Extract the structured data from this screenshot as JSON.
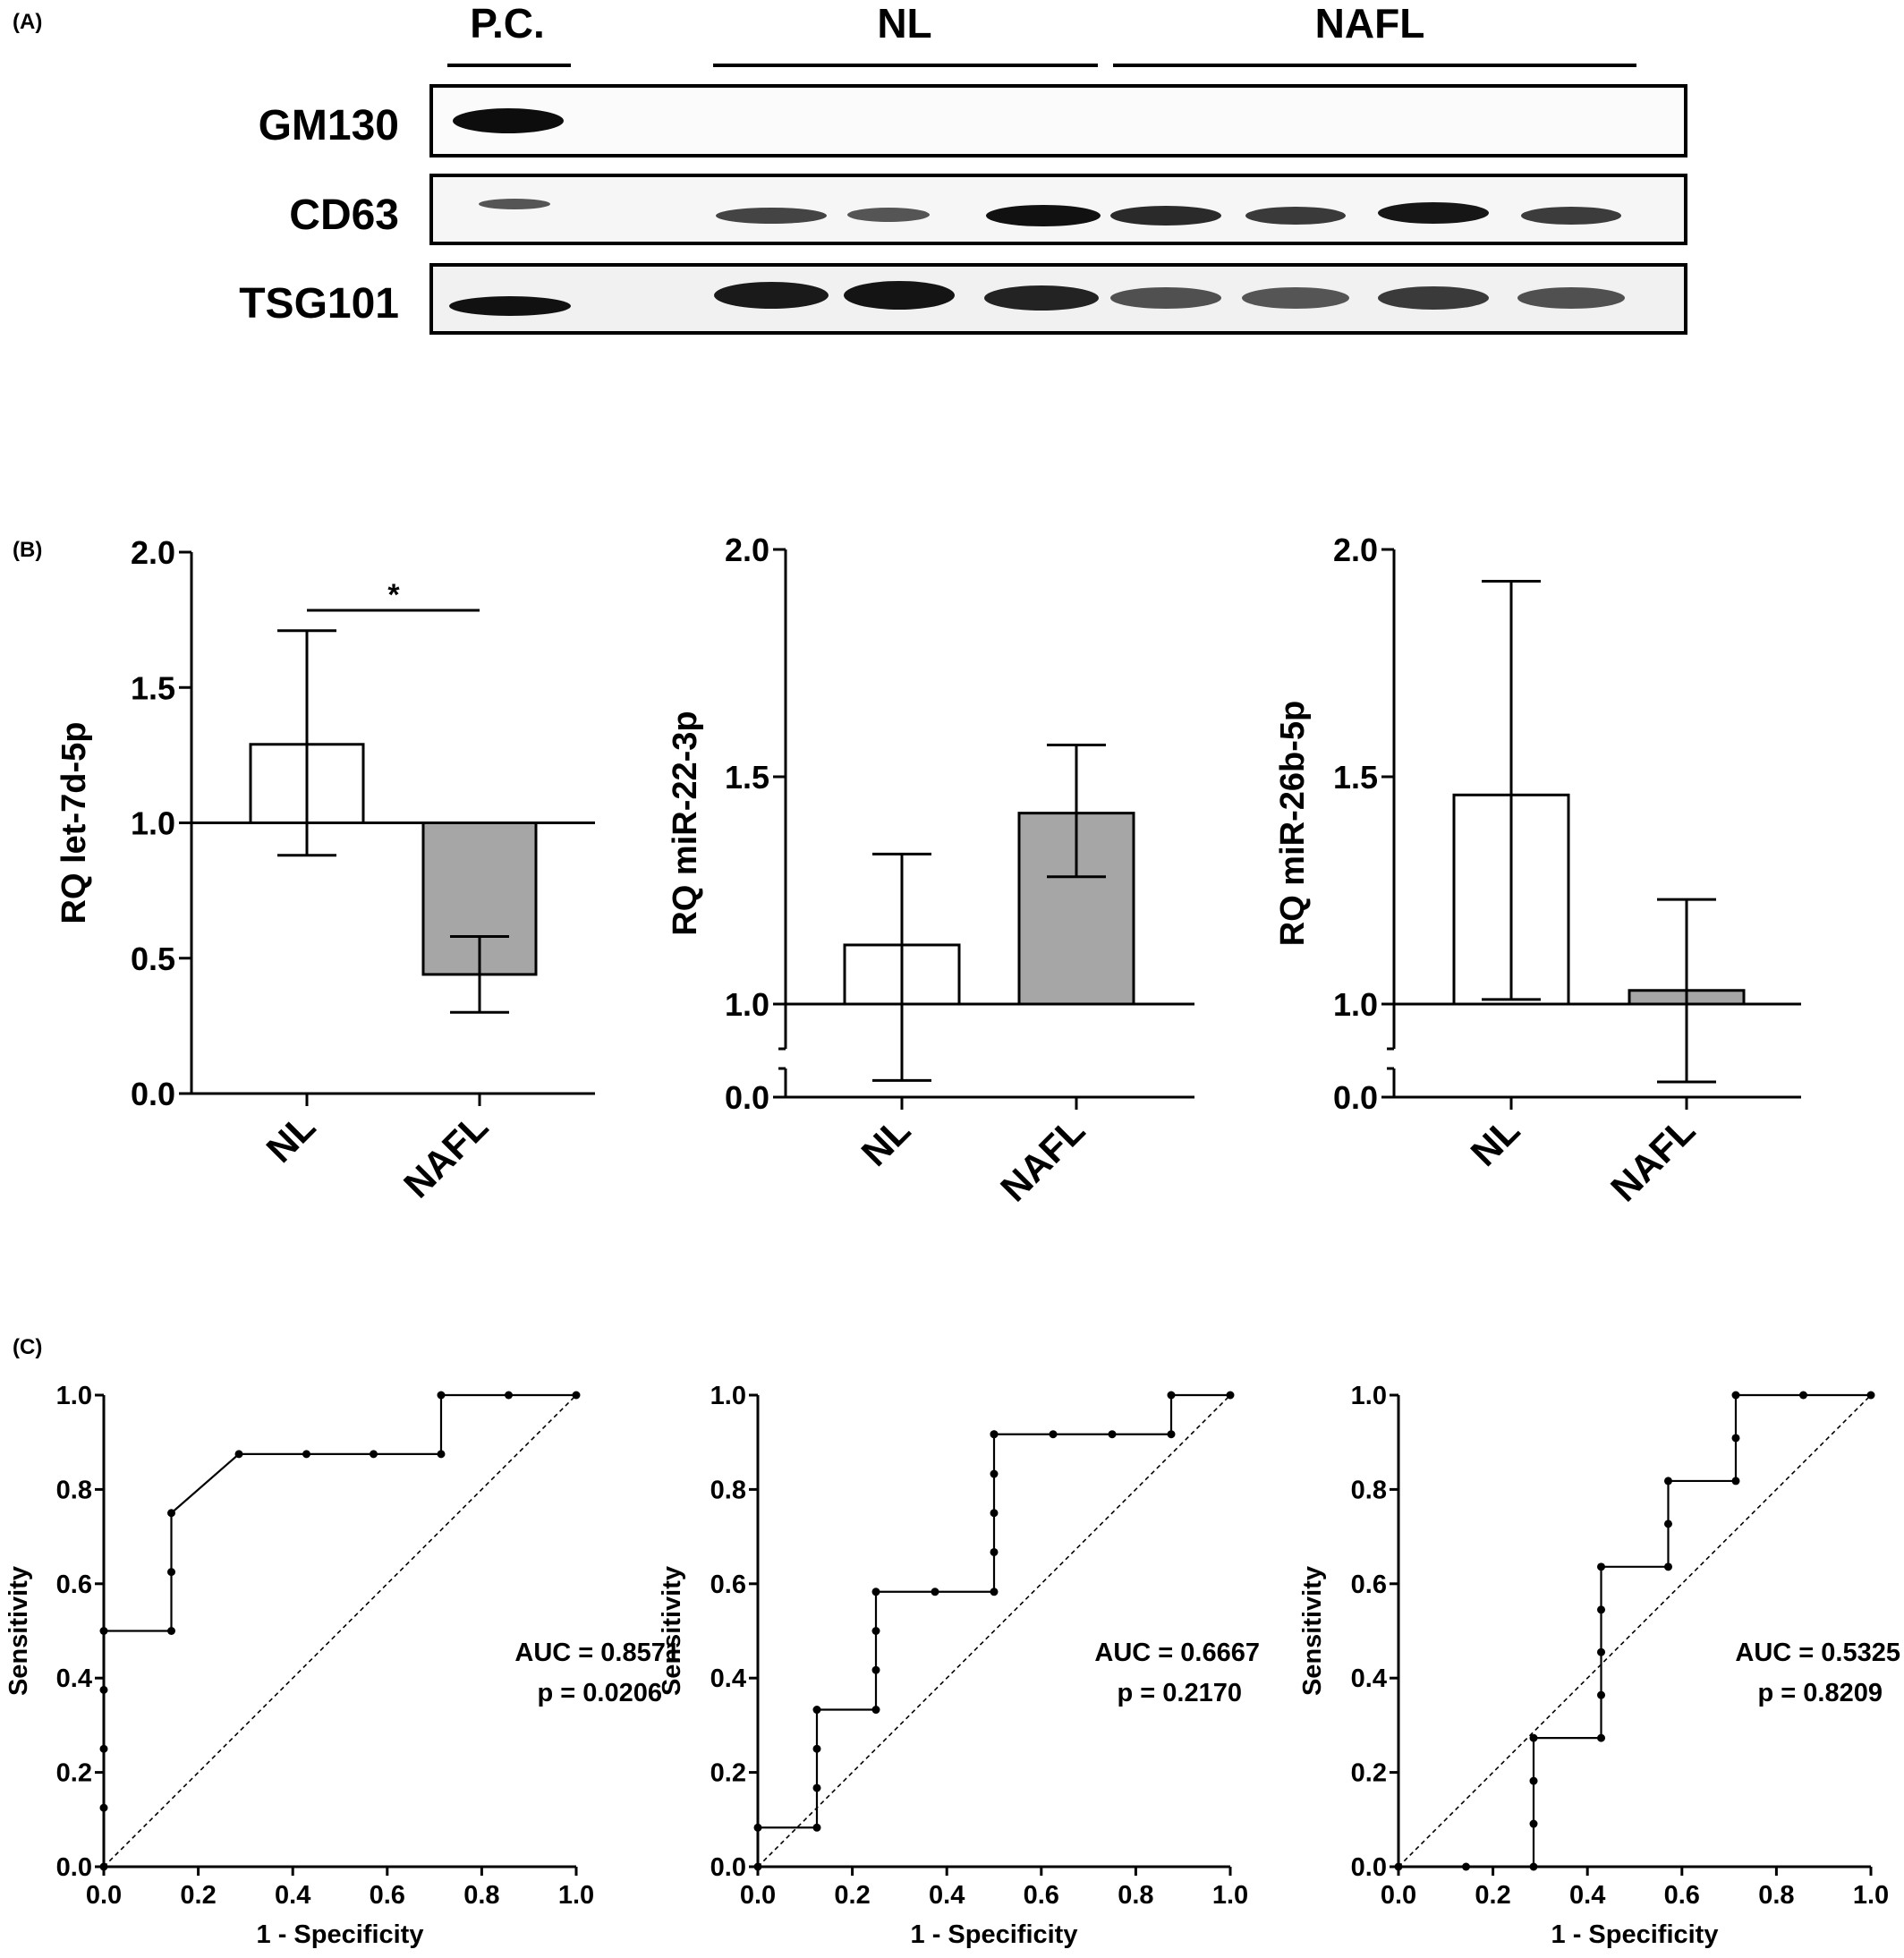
{
  "panel_labels": {
    "a": "(A)",
    "b": "(B)",
    "c": "(C)"
  },
  "western_blot": {
    "lane_groups": [
      "P.C.",
      "NL",
      "NAFL"
    ],
    "rows": [
      "GM130",
      "CD63",
      "TSG101"
    ]
  },
  "chart_data": [
    {
      "type": "bar",
      "panel": "B",
      "ylabel": "RQ let-7d-5p",
      "categories": [
        "NL",
        "NAFL"
      ],
      "values": [
        1.29,
        0.44
      ],
      "error_bars": [
        [
          0.88,
          1.71
        ],
        [
          0.3,
          0.58
        ]
      ],
      "bar_colors": [
        "#ffffff",
        "#a6a6a6"
      ],
      "baseline": 1.0,
      "ylim": [
        0,
        2
      ],
      "yticks": [
        "0.0",
        "0.5",
        "1.0",
        "1.5",
        "2.0"
      ],
      "annotation": "*"
    },
    {
      "type": "bar",
      "panel": "B",
      "ylabel": "RQ miR-22-3p",
      "categories": [
        "NL",
        "NAFL"
      ],
      "values": [
        1.13,
        1.42
      ],
      "error_bars": [
        [
          0.93,
          1.33
        ],
        [
          1.28,
          1.57
        ]
      ],
      "bar_colors": [
        "#ffffff",
        "#a6a6a6"
      ],
      "baseline": 1.0,
      "ylim": [
        0,
        2
      ],
      "axis_break": [
        0.0,
        1.0
      ],
      "yticks": [
        "0.0",
        "1.0",
        "1.5",
        "2.0"
      ]
    },
    {
      "type": "bar",
      "panel": "B",
      "ylabel": "RQ miR-26b-5p",
      "categories": [
        "NL",
        "NAFL"
      ],
      "values": [
        1.46,
        1.03
      ],
      "error_bars": [
        [
          1.01,
          1.93
        ],
        [
          0.85,
          1.23
        ]
      ],
      "bar_colors": [
        "#ffffff",
        "#a6a6a6"
      ],
      "baseline": 1.0,
      "ylim": [
        0,
        2
      ],
      "axis_break": [
        0.0,
        1.0
      ],
      "yticks": [
        "0.0",
        "1.0",
        "1.5",
        "2.0"
      ]
    },
    {
      "type": "line",
      "panel": "C",
      "xlabel": "1 - Specificity",
      "ylabel": "Sensitivity",
      "xlim": [
        0,
        1
      ],
      "ylim": [
        0,
        1
      ],
      "ticks": [
        "0.0",
        "0.2",
        "0.4",
        "0.6",
        "0.8",
        "1.0"
      ],
      "reference_line": "diagonal",
      "auc_text": "AUC = 0.8571",
      "p_text": "p = 0.0206",
      "x": [
        0,
        0,
        0,
        0,
        0,
        0.143,
        0.143,
        0.143,
        0.286,
        0.429,
        0.571,
        0.714,
        0.714,
        0.857,
        1.0
      ],
      "y": [
        0,
        0.125,
        0.25,
        0.375,
        0.5,
        0.5,
        0.625,
        0.75,
        0.875,
        0.875,
        0.875,
        0.875,
        1.0,
        1.0,
        1.0
      ]
    },
    {
      "type": "line",
      "panel": "C",
      "xlabel": "1 - Specificity",
      "ylabel": "Sensitivity",
      "xlim": [
        0,
        1
      ],
      "ylim": [
        0,
        1
      ],
      "ticks": [
        "0.0",
        "0.2",
        "0.4",
        "0.6",
        "0.8",
        "1.0"
      ],
      "reference_line": "diagonal",
      "auc_text": "AUC = 0.6667",
      "p_text": "p = 0.2170",
      "x": [
        0,
        0,
        0.125,
        0.125,
        0.125,
        0.125,
        0.25,
        0.25,
        0.25,
        0.25,
        0.375,
        0.5,
        0.5,
        0.5,
        0.5,
        0.5,
        0.5,
        0.625,
        0.75,
        0.875,
        0.875,
        1.0
      ],
      "y": [
        0,
        0.083,
        0.083,
        0.167,
        0.25,
        0.333,
        0.333,
        0.417,
        0.5,
        0.583,
        0.583,
        0.583,
        0.667,
        0.75,
        0.833,
        0.917,
        0.917,
        0.917,
        0.917,
        0.917,
        1.0,
        1.0
      ]
    },
    {
      "type": "line",
      "panel": "C",
      "xlabel": "1 - Specificity",
      "ylabel": "Sensitivity",
      "xlim": [
        0,
        1
      ],
      "ylim": [
        0,
        1
      ],
      "ticks": [
        "0.0",
        "0.2",
        "0.4",
        "0.6",
        "0.8",
        "1.0"
      ],
      "reference_line": "diagonal",
      "auc_text": "AUC = 0.5325",
      "p_text": "p = 0.8209",
      "x": [
        0,
        0.143,
        0.286,
        0.286,
        0.286,
        0.286,
        0.429,
        0.429,
        0.429,
        0.429,
        0.429,
        0.571,
        0.571,
        0.571,
        0.714,
        0.714,
        0.714,
        0.857,
        1.0
      ],
      "y": [
        0,
        0,
        0,
        0.091,
        0.182,
        0.273,
        0.273,
        0.364,
        0.455,
        0.545,
        0.636,
        0.636,
        0.727,
        0.818,
        0.818,
        0.909,
        1.0,
        1.0,
        1.0
      ]
    }
  ]
}
